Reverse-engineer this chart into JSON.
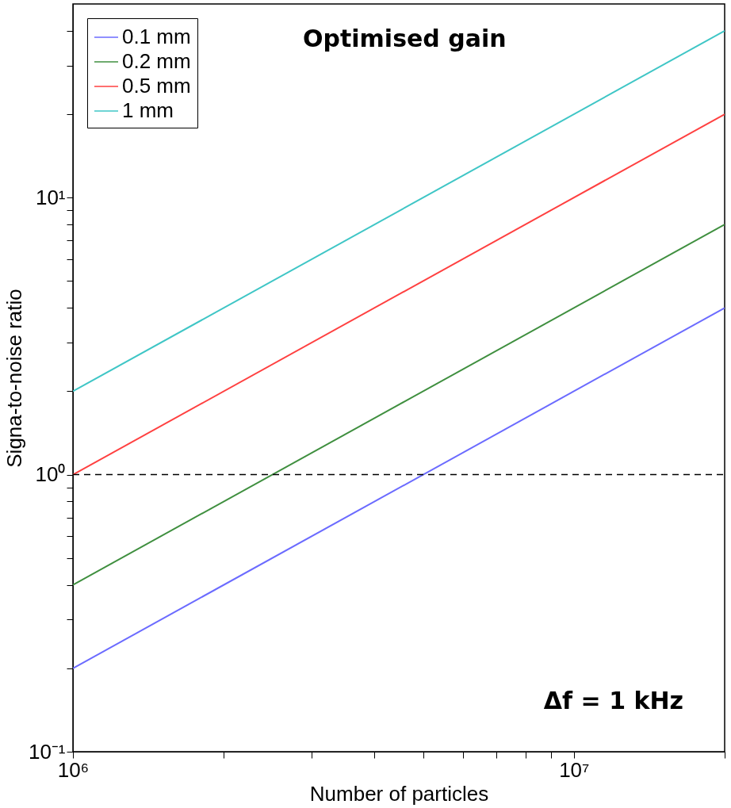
{
  "chart_data": {
    "type": "line",
    "xlabel": "Number of particles",
    "ylabel": "Signa-to-noise ratio",
    "x": [
      1000000,
      20000000
    ],
    "series": [
      {
        "name": "0.1 mm",
        "color": "#6b6bff",
        "values": [
          0.2,
          4
        ]
      },
      {
        "name": "0.2 mm",
        "color": "#3f8f3f",
        "values": [
          0.4,
          8
        ]
      },
      {
        "name": "0.5 mm",
        "color": "#ff4040",
        "values": [
          1,
          20
        ]
      },
      {
        "name": "1 mm",
        "color": "#3fc6c6",
        "values": [
          2,
          40
        ]
      }
    ],
    "log": "xy",
    "xlim": [
      1000000,
      20000000
    ],
    "ylim": [
      0.1,
      50
    ],
    "xticks": [
      {
        "value": 1000000,
        "label": "10⁶"
      },
      {
        "value": 2000000,
        "label": null
      },
      {
        "value": 3000000,
        "label": null
      },
      {
        "value": 4000000,
        "label": null
      },
      {
        "value": 5000000,
        "label": null
      },
      {
        "value": 6000000,
        "label": null
      },
      {
        "value": 7000000,
        "label": null
      },
      {
        "value": 8000000,
        "label": null
      },
      {
        "value": 9000000,
        "label": null
      },
      {
        "value": 10000000,
        "label": "10⁷"
      },
      {
        "value": 20000000,
        "label": null
      }
    ],
    "yticks": [
      {
        "value": 0.1,
        "label": "10⁻¹"
      },
      {
        "value": 0.2,
        "label": null
      },
      {
        "value": 0.3,
        "label": null
      },
      {
        "value": 0.4,
        "label": null
      },
      {
        "value": 0.5,
        "label": null
      },
      {
        "value": 0.6,
        "label": null
      },
      {
        "value": 0.7,
        "label": null
      },
      {
        "value": 0.8,
        "label": null
      },
      {
        "value": 0.9,
        "label": null
      },
      {
        "value": 1,
        "label": "10⁰"
      },
      {
        "value": 2,
        "label": null
      },
      {
        "value": 3,
        "label": null
      },
      {
        "value": 4,
        "label": null
      },
      {
        "value": 5,
        "label": null
      },
      {
        "value": 6,
        "label": null
      },
      {
        "value": 7,
        "label": null
      },
      {
        "value": 8,
        "label": null
      },
      {
        "value": 9,
        "label": null
      },
      {
        "value": 10,
        "label": "10¹"
      },
      {
        "value": 20,
        "label": null
      },
      {
        "value": 30,
        "label": null
      },
      {
        "value": 40,
        "label": null
      }
    ],
    "ref_lines": [
      {
        "axis": "y",
        "value": 1,
        "color": "#000000",
        "line_style": "dashed"
      }
    ],
    "annotations": [
      "Optimised gain",
      "Δf = 1 kHz"
    ],
    "legend": "top left",
    "grid": false,
    "line_style": "solid",
    "marker": "none"
  }
}
